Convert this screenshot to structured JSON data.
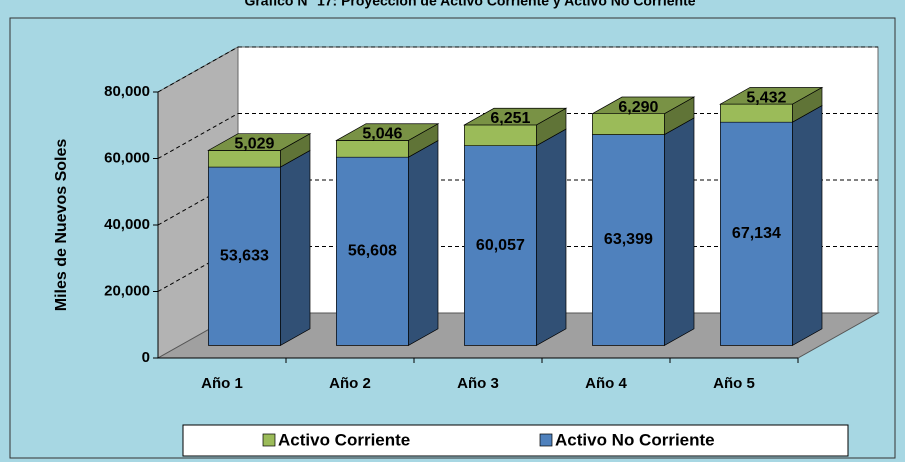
{
  "chart_data": {
    "type": "bar3d_stacked",
    "title": "Gráfico N° 17: Proyección de Activo Corriente y Activo No Corriente",
    "ylabel": "Miles de Nuevos Soles",
    "categories": [
      "Año 1",
      "Año 2",
      "Año 3",
      "Año 4",
      "Año 5"
    ],
    "series": [
      {
        "name": "Activo Corriente",
        "color": "#9bbb59",
        "values": [
          5029,
          5046,
          6251,
          6290,
          5432
        ],
        "value_labels": [
          "5,029",
          "5,046",
          "6,251",
          "6,290",
          "5,432"
        ]
      },
      {
        "name": "Activo No Corriente",
        "color": "#4f81bd",
        "values": [
          53633,
          56608,
          60057,
          63399,
          67134
        ],
        "value_labels": [
          "53,633",
          "56,608",
          "60,057",
          "63,399",
          "67,134"
        ]
      }
    ],
    "ylim": [
      0,
      80000
    ],
    "yticks": [
      0,
      {
        "value": 20000,
        "label": "20,000"
      },
      {
        "value": 40000,
        "label": "40,000"
      },
      {
        "value": 60000,
        "label": "60,000"
      },
      {
        "value": 80000,
        "label": "80,000"
      }
    ],
    "grid": true,
    "stacked": true,
    "legend": "bottom"
  }
}
